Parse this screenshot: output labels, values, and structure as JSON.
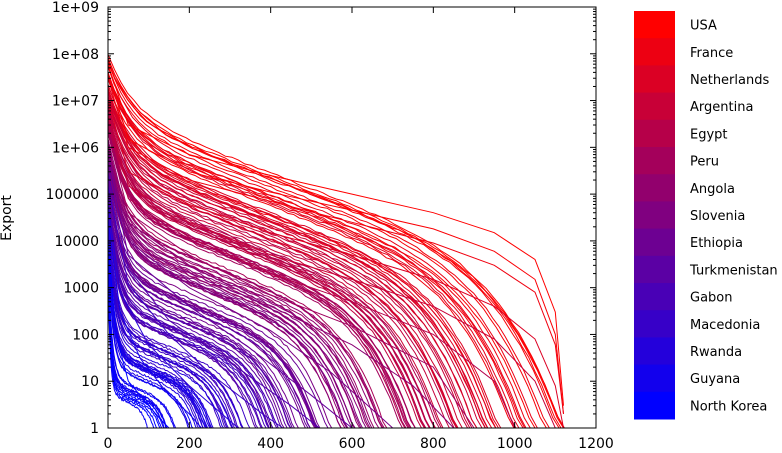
{
  "chart_data": {
    "type": "line",
    "title": "",
    "xlabel": "",
    "ylabel": "Export",
    "xlim": [
      0,
      1200
    ],
    "ylim": [
      1,
      1000000000
    ],
    "yscale": "log",
    "grid": false,
    "x_ticks": [
      0,
      200,
      400,
      600,
      800,
      1000,
      1200
    ],
    "x_tick_labels": [
      "0",
      "200",
      "400",
      "600",
      "800",
      "1000",
      "1200"
    ],
    "y_ticks": [
      1,
      10,
      100,
      1000,
      10000,
      100000,
      1000000,
      10000000,
      100000000,
      1000000000
    ],
    "y_tick_labels": [
      "1",
      "10",
      "100",
      "1000",
      "10000",
      "100000",
      "1e+06",
      "1e+07",
      "1e+08",
      "1e+09"
    ],
    "legend": {
      "placement": "right",
      "style": "color-scale",
      "color_top": "#ff0000",
      "color_bottom": "#0000ff",
      "entries": [
        "USA",
        "France",
        "Netherlands",
        "Argentina",
        "Egypt",
        "Peru",
        "Angola",
        "Slovenia",
        "Ethiopia",
        "Turkmenistan",
        "Gabon",
        "Macedonia",
        "Rwanda",
        "Guyana",
        "North Korea"
      ]
    },
    "series_count": 160,
    "series_shape": "rank-ordered export values per country, sorted descending; most exporting countries (red) extend to rank ~1120, least exporting (blue) drop to 1 within ~100-300 ranks",
    "series": [
      {
        "name": "USA",
        "color": "#ff0000",
        "x": [
          0,
          50,
          200,
          400,
          600,
          800,
          950,
          1050,
          1100,
          1120
        ],
        "y": [
          60000000,
          3000000,
          700000,
          250000,
          100000,
          40000,
          15000,
          4000,
          300,
          3
        ]
      },
      {
        "name": "France",
        "color": "#fa0005",
        "x": [
          0,
          50,
          200,
          400,
          600,
          800,
          950,
          1050,
          1100,
          1120
        ],
        "y": [
          40000000,
          1500000,
          300000,
          110000,
          45000,
          18000,
          6000,
          1500,
          100,
          2
        ]
      },
      {
        "name": "Netherlands",
        "color": "#f0000f",
        "x": [
          0,
          50,
          200,
          400,
          600,
          800,
          950,
          1050,
          1100,
          1120
        ],
        "y": [
          30000000,
          1000000,
          200000,
          70000,
          25000,
          9000,
          3000,
          800,
          60,
          2
        ]
      },
      {
        "name": "Argentina",
        "color": "#dc0023",
        "x": [
          0,
          50,
          200,
          400,
          600,
          800,
          950,
          1050,
          1100,
          1120
        ],
        "y": [
          10000000,
          300000,
          60000,
          15000,
          5000,
          1500,
          400,
          80,
          8,
          1
        ]
      },
      {
        "name": "Egypt",
        "color": "#c80037",
        "x": [
          0,
          50,
          200,
          400,
          600,
          800,
          950,
          1050,
          1100
        ],
        "y": [
          5000000,
          150000,
          25000,
          5000,
          1500,
          400,
          80,
          10,
          1
        ]
      },
      {
        "name": "Peru",
        "color": "#b4004b",
        "x": [
          0,
          50,
          200,
          400,
          600,
          800,
          950,
          1000
        ],
        "y": [
          3000000,
          80000,
          12000,
          2000,
          500,
          100,
          10,
          1
        ]
      },
      {
        "name": "Angola",
        "color": "#a0005f",
        "x": [
          0,
          50,
          200,
          400,
          600,
          800,
          900
        ],
        "y": [
          2000000,
          40000,
          5000,
          700,
          150,
          20,
          1
        ]
      },
      {
        "name": "Slovenia",
        "color": "#8c0073",
        "x": [
          0,
          50,
          200,
          400,
          600,
          750,
          850
        ],
        "y": [
          1500000,
          25000,
          3000,
          400,
          60,
          8,
          1
        ]
      },
      {
        "name": "Ethiopia",
        "color": "#780087",
        "x": [
          0,
          50,
          200,
          400,
          550,
          700
        ],
        "y": [
          800000,
          10000,
          1000,
          120,
          15,
          1
        ]
      },
      {
        "name": "Turkmenistan",
        "color": "#64009b",
        "x": [
          0,
          50,
          200,
          350,
          500,
          600
        ],
        "y": [
          500000,
          5000,
          400,
          50,
          5,
          1
        ]
      },
      {
        "name": "Gabon",
        "color": "#5000af",
        "x": [
          0,
          50,
          150,
          300,
          450,
          520
        ],
        "y": [
          300000,
          2500,
          200,
          25,
          3,
          1
        ]
      },
      {
        "name": "Macedonia",
        "color": "#3c00c3",
        "x": [
          0,
          50,
          150,
          250,
          380,
          430
        ],
        "y": [
          150000,
          1200,
          100,
          15,
          2,
          1
        ]
      },
      {
        "name": "Rwanda",
        "color": "#2800d7",
        "x": [
          0,
          30,
          100,
          200,
          280,
          320
        ],
        "y": [
          60000,
          800,
          60,
          8,
          2,
          1
        ]
      },
      {
        "name": "Guyana",
        "color": "#1400eb",
        "x": [
          0,
          30,
          80,
          150,
          200,
          230
        ],
        "y": [
          30000,
          300,
          30,
          5,
          2,
          1
        ]
      },
      {
        "name": "North Korea",
        "color": "#0000ff",
        "x": [
          0,
          20,
          50,
          100,
          130,
          150
        ],
        "y": [
          8000,
          100,
          10,
          3,
          1.5,
          1
        ]
      }
    ]
  }
}
